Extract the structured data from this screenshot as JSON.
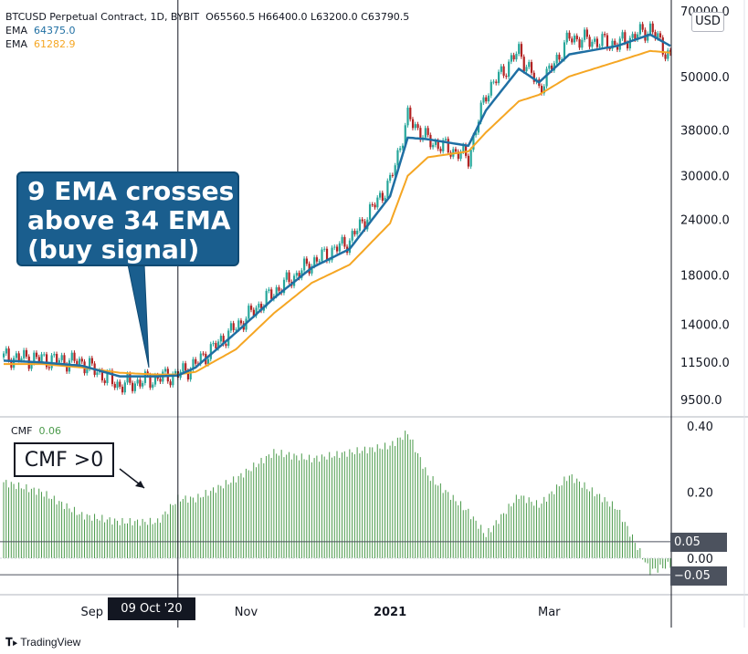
{
  "header": {
    "symbol": "BTCUSD Perpetual Contract, 1D, BYBIT",
    "ohlc": "O65560.5  H66400.0  L63200.0  C63790.5",
    "ema1_label": "EMA",
    "ema1_value": "64375.0",
    "ema2_label": "EMA",
    "ema2_value": "61282.9",
    "unit": "USD"
  },
  "cmf_legend": {
    "label": "CMF",
    "value": "0.06"
  },
  "annotations": {
    "ema_cross": [
      "9 EMA crosses",
      "above 34 EMA",
      "(buy signal)"
    ],
    "cmf": "CMF >0"
  },
  "crosshair_date": "09 Oct '20",
  "badges": {
    "upper": "0.05",
    "lower": "−0.05"
  },
  "footer": "TradingView",
  "colors": {
    "up": "#26a69a",
    "down": "#b22222",
    "ema_fast": "#1f6fa3",
    "ema_slow": "#f5a623",
    "cmf_bar": "#4a9a4a",
    "annotation": "#1a5e8e",
    "badge": "#4c525e"
  },
  "chart_data": [
    {
      "type": "line",
      "title": "BTCUSD Perpetual Contract, 1D, BYBIT",
      "ylabel": "USD",
      "yscale": "log",
      "y_ticks": [
        "70000.0",
        "50000.0",
        "38000.0",
        "30000.0",
        "24000.0",
        "18000.0",
        "14000.0",
        "11500.0",
        "9500.0"
      ],
      "x_ticks": [
        "Sep",
        "Nov",
        "2021",
        "Mar"
      ],
      "x_dates": [
        "2020-08-01",
        "2020-08-16",
        "2020-09-01",
        "2020-09-16",
        "2020-10-01",
        "2020-10-09",
        "2020-10-16",
        "2020-11-01",
        "2020-11-16",
        "2020-12-01",
        "2020-12-16",
        "2021-01-01",
        "2021-01-08",
        "2021-01-16",
        "2021-02-01",
        "2021-02-08",
        "2021-02-21",
        "2021-03-01",
        "2021-03-13",
        "2021-04-01",
        "2021-04-14",
        "2021-04-22"
      ],
      "series": [
        {
          "name": "Price",
          "values": [
            11800,
            11700,
            11500,
            10200,
            10600,
            10800,
            11400,
            13800,
            16500,
            19200,
            21500,
            29000,
            40500,
            36000,
            33000,
            46000,
            57000,
            47000,
            61000,
            59000,
            64000,
            55000
          ]
        },
        {
          "name": "EMA",
          "values": [
            11600,
            11500,
            11300,
            10700,
            10700,
            10750,
            11200,
            13400,
            16000,
            18700,
            20600,
            27000,
            36500,
            36200,
            35000,
            42000,
            52000,
            48500,
            56000,
            58500,
            62000,
            58500
          ]
        },
        {
          "name": "EMA",
          "values": [
            11400,
            11400,
            11200,
            10900,
            10800,
            10800,
            10950,
            12300,
            14800,
            17300,
            19000,
            23500,
            30000,
            33000,
            34000,
            37500,
            44000,
            45500,
            50000,
            54000,
            57000,
            56500
          ]
        }
      ]
    },
    {
      "type": "bar",
      "title": "CMF",
      "y_ticks": [
        "0.40",
        "0.20",
        "0.00"
      ],
      "reference_lines": [
        0.05,
        -0.05
      ],
      "x_dates": [
        "2020-08-01",
        "2020-08-16",
        "2020-09-01",
        "2020-09-16",
        "2020-10-01",
        "2020-10-09",
        "2020-10-16",
        "2020-11-01",
        "2020-11-16",
        "2020-12-01",
        "2020-12-16",
        "2021-01-01",
        "2021-01-08",
        "2021-01-16",
        "2021-02-01",
        "2021-02-08",
        "2021-02-21",
        "2021-03-01",
        "2021-03-13",
        "2021-04-01",
        "2021-04-14",
        "2021-04-22"
      ],
      "values": [
        0.23,
        0.2,
        0.13,
        0.11,
        0.11,
        0.18,
        0.18,
        0.24,
        0.32,
        0.3,
        0.32,
        0.34,
        0.38,
        0.25,
        0.14,
        0.07,
        0.19,
        0.16,
        0.25,
        0.15,
        -0.04,
        -0.02
      ]
    }
  ]
}
